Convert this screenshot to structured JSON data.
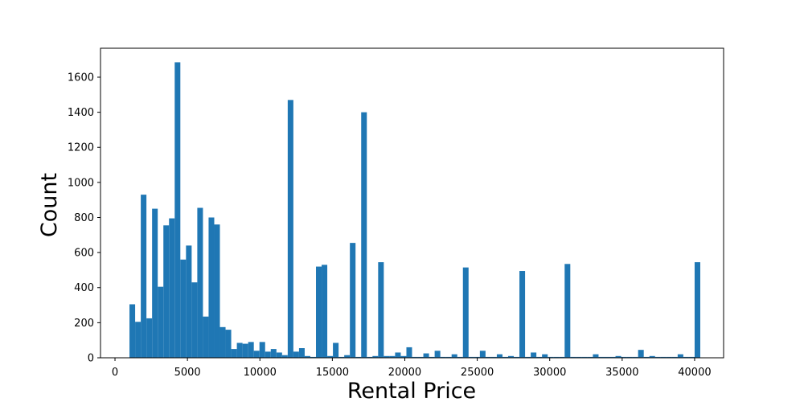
{
  "chart_data": {
    "type": "bar",
    "title": "",
    "xlabel": "Rental Price",
    "ylabel": "Count",
    "xlim": [
      -1000,
      42000
    ],
    "ylim": [
      0,
      1765
    ],
    "xticks": [
      0,
      5000,
      10000,
      15000,
      20000,
      25000,
      30000,
      35000,
      40000
    ],
    "yticks": [
      0,
      200,
      400,
      600,
      800,
      1000,
      1200,
      1400,
      1600
    ],
    "bin_start": 1000,
    "bin_width": 390,
    "bar_color": "#1f77b4",
    "counts": [
      305,
      205,
      930,
      225,
      850,
      405,
      755,
      795,
      1685,
      560,
      640,
      430,
      855,
      235,
      800,
      760,
      175,
      160,
      50,
      85,
      80,
      90,
      40,
      90,
      35,
      50,
      30,
      15,
      1470,
      35,
      55,
      10,
      5,
      520,
      530,
      10,
      85,
      5,
      15,
      655,
      5,
      1400,
      5,
      10,
      545,
      10,
      10,
      30,
      10,
      60,
      5,
      5,
      25,
      5,
      40,
      5,
      5,
      20,
      5,
      515,
      5,
      5,
      40,
      5,
      5,
      20,
      5,
      10,
      5,
      495,
      5,
      30,
      5,
      20,
      5,
      5,
      5,
      535,
      5,
      5,
      5,
      5,
      20,
      5,
      5,
      5,
      10,
      5,
      5,
      5,
      45,
      5,
      10,
      5,
      5,
      5,
      5,
      20,
      5,
      5,
      545
    ]
  }
}
